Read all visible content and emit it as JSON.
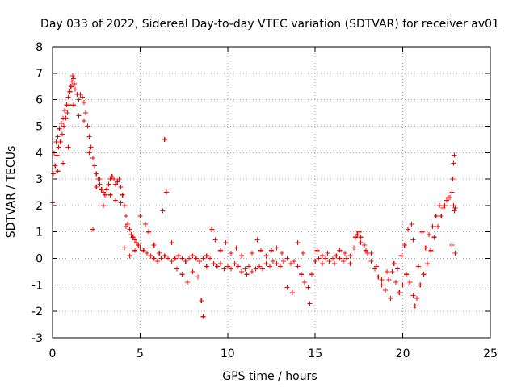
{
  "chart_data": {
    "type": "scatter",
    "title": "Day 033 of 2022, Sidereal Day-to-day VTEC variation (SDTVAR) for receiver av01",
    "xlabel": "GPS time / hours",
    "ylabel": "SDTVAR / TECUs",
    "xlim": [
      0,
      25
    ],
    "ylim": [
      -3,
      8
    ],
    "xticks": [
      0,
      5,
      10,
      15,
      20,
      25
    ],
    "yticks": [
      -3,
      -2,
      -1,
      0,
      1,
      2,
      3,
      4,
      5,
      6,
      7,
      8
    ],
    "grid": true,
    "legend": "none",
    "marker": "+",
    "color": "#ff0000",
    "series": [
      {
        "name": "SDTVAR",
        "points": [
          [
            0.0,
            2.1
          ],
          [
            0.05,
            3.2
          ],
          [
            0.1,
            4.0
          ],
          [
            0.15,
            3.5
          ],
          [
            0.2,
            4.4
          ],
          [
            0.25,
            3.9
          ],
          [
            0.3,
            4.6
          ],
          [
            0.35,
            4.2
          ],
          [
            0.4,
            4.9
          ],
          [
            0.45,
            4.4
          ],
          [
            0.5,
            5.1
          ],
          [
            0.55,
            4.7
          ],
          [
            0.6,
            5.3
          ],
          [
            0.65,
            5.0
          ],
          [
            0.7,
            5.6
          ],
          [
            0.75,
            5.3
          ],
          [
            0.8,
            5.8
          ],
          [
            0.85,
            5.5
          ],
          [
            0.9,
            6.1
          ],
          [
            0.95,
            5.8
          ],
          [
            1.0,
            6.3
          ],
          [
            1.05,
            6.5
          ],
          [
            1.1,
            6.7
          ],
          [
            1.15,
            6.9
          ],
          [
            1.2,
            6.8
          ],
          [
            1.25,
            6.6
          ],
          [
            1.3,
            6.4
          ],
          [
            1.4,
            6.2
          ],
          [
            1.5,
            6.0
          ],
          [
            1.6,
            6.2
          ],
          [
            1.7,
            6.1
          ],
          [
            1.8,
            5.9
          ],
          [
            1.9,
            5.5
          ],
          [
            2.0,
            5.0
          ],
          [
            2.1,
            4.6
          ],
          [
            2.2,
            4.2
          ],
          [
            2.3,
            3.8
          ],
          [
            2.4,
            3.5
          ],
          [
            2.5,
            3.2
          ],
          [
            2.6,
            3.0
          ],
          [
            2.7,
            2.8
          ],
          [
            2.8,
            2.6
          ],
          [
            2.9,
            2.5
          ],
          [
            3.0,
            2.4
          ],
          [
            3.1,
            2.6
          ],
          [
            3.2,
            2.8
          ],
          [
            3.3,
            3.0
          ],
          [
            3.4,
            3.1
          ],
          [
            3.5,
            3.0
          ],
          [
            3.6,
            2.8
          ],
          [
            3.7,
            2.9
          ],
          [
            3.8,
            3.0
          ],
          [
            3.9,
            2.7
          ],
          [
            4.0,
            2.4
          ],
          [
            4.1,
            2.0
          ],
          [
            4.2,
            1.6
          ],
          [
            4.3,
            1.3
          ],
          [
            4.4,
            1.1
          ],
          [
            4.5,
            0.9
          ],
          [
            4.6,
            0.8
          ],
          [
            4.7,
            0.7
          ],
          [
            4.8,
            0.6
          ],
          [
            4.9,
            0.5
          ],
          [
            5.0,
            0.4
          ],
          [
            5.2,
            0.3
          ],
          [
            5.4,
            0.2
          ],
          [
            5.6,
            0.1
          ],
          [
            5.8,
            0.0
          ],
          [
            6.0,
            -0.1
          ],
          [
            6.2,
            0.0
          ],
          [
            6.4,
            0.1
          ],
          [
            6.6,
            0.0
          ],
          [
            6.8,
            -0.1
          ],
          [
            7.0,
            0.0
          ],
          [
            7.2,
            0.1
          ],
          [
            7.4,
            0.0
          ],
          [
            7.6,
            -0.1
          ],
          [
            7.8,
            0.0
          ],
          [
            8.0,
            0.1
          ],
          [
            8.2,
            0.0
          ],
          [
            8.4,
            -0.1
          ],
          [
            8.6,
            0.0
          ],
          [
            8.8,
            0.1
          ],
          [
            9.0,
            0.0
          ],
          [
            9.2,
            -0.2
          ],
          [
            9.4,
            -0.3
          ],
          [
            9.6,
            -0.2
          ],
          [
            9.8,
            -0.4
          ],
          [
            10.0,
            -0.3
          ],
          [
            10.2,
            -0.4
          ],
          [
            10.4,
            -0.2
          ],
          [
            10.6,
            -0.3
          ],
          [
            10.8,
            -0.5
          ],
          [
            11.0,
            -0.4
          ],
          [
            11.2,
            -0.3
          ],
          [
            11.4,
            -0.5
          ],
          [
            11.6,
            -0.4
          ],
          [
            11.8,
            -0.3
          ],
          [
            12.0,
            -0.4
          ],
          [
            12.2,
            -0.2
          ],
          [
            12.4,
            -0.3
          ],
          [
            12.6,
            -0.1
          ],
          [
            12.8,
            -0.2
          ],
          [
            13.0,
            -0.3
          ],
          [
            13.2,
            -0.1
          ],
          [
            13.4,
            0.0
          ],
          [
            13.6,
            -0.2
          ],
          [
            13.8,
            -0.1
          ],
          [
            14.0,
            -0.3
          ],
          [
            14.2,
            -0.6
          ],
          [
            14.4,
            -0.9
          ],
          [
            14.6,
            -1.1
          ],
          [
            14.8,
            -0.6
          ],
          [
            15.0,
            -0.1
          ],
          [
            15.2,
            0.0
          ],
          [
            15.4,
            0.1
          ],
          [
            15.6,
            0.0
          ],
          [
            15.8,
            -0.1
          ],
          [
            16.0,
            0.0
          ],
          [
            16.2,
            0.1
          ],
          [
            16.4,
            0.0
          ],
          [
            16.6,
            -0.1
          ],
          [
            16.8,
            0.0
          ],
          [
            17.0,
            0.1
          ],
          [
            17.2,
            0.4
          ],
          [
            17.4,
            0.9
          ],
          [
            17.5,
            1.0
          ],
          [
            17.6,
            0.8
          ],
          [
            17.8,
            0.5
          ],
          [
            18.0,
            0.2
          ],
          [
            18.2,
            -0.1
          ],
          [
            18.4,
            -0.4
          ],
          [
            18.6,
            -0.7
          ],
          [
            18.8,
            -1.0
          ],
          [
            19.0,
            -1.2
          ],
          [
            19.2,
            -0.8
          ],
          [
            19.4,
            -0.5
          ],
          [
            19.6,
            -0.9
          ],
          [
            19.8,
            -1.3
          ],
          [
            20.0,
            -1.0
          ],
          [
            20.2,
            -0.6
          ],
          [
            20.4,
            -0.9
          ],
          [
            20.6,
            -1.4
          ],
          [
            20.7,
            -1.8
          ],
          [
            20.8,
            -1.5
          ],
          [
            21.0,
            -1.0
          ],
          [
            21.2,
            -0.6
          ],
          [
            21.4,
            -0.2
          ],
          [
            21.6,
            0.3
          ],
          [
            21.8,
            0.8
          ],
          [
            22.0,
            1.2
          ],
          [
            22.2,
            1.6
          ],
          [
            22.4,
            2.0
          ],
          [
            22.6,
            2.3
          ],
          [
            22.8,
            2.5
          ],
          [
            22.9,
            2.0
          ],
          [
            22.95,
            1.8
          ],
          [
            23.0,
            1.9
          ],
          [
            0.3,
            3.3
          ],
          [
            0.6,
            3.6
          ],
          [
            0.9,
            4.2
          ],
          [
            1.2,
            5.8
          ],
          [
            1.5,
            5.4
          ],
          [
            1.8,
            5.2
          ],
          [
            2.1,
            4.0
          ],
          [
            2.3,
            1.1
          ],
          [
            2.5,
            2.7
          ],
          [
            2.7,
            3.0
          ],
          [
            2.9,
            2.0
          ],
          [
            3.3,
            2.4
          ],
          [
            3.6,
            2.2
          ],
          [
            3.9,
            2.1
          ],
          [
            4.1,
            0.4
          ],
          [
            4.2,
            1.2
          ],
          [
            4.4,
            0.1
          ],
          [
            4.7,
            0.3
          ],
          [
            5.0,
            1.6
          ],
          [
            5.3,
            1.3
          ],
          [
            5.5,
            1.0
          ],
          [
            5.8,
            0.5
          ],
          [
            6.1,
            0.2
          ],
          [
            6.3,
            1.8
          ],
          [
            6.4,
            4.5
          ],
          [
            6.5,
            2.5
          ],
          [
            6.8,
            0.6
          ],
          [
            7.1,
            -0.4
          ],
          [
            7.4,
            -0.6
          ],
          [
            7.7,
            -0.9
          ],
          [
            8.0,
            -0.5
          ],
          [
            8.3,
            -0.7
          ],
          [
            8.5,
            -1.6
          ],
          [
            8.6,
            -2.2
          ],
          [
            8.8,
            -0.3
          ],
          [
            9.1,
            1.1
          ],
          [
            9.3,
            0.7
          ],
          [
            9.6,
            0.3
          ],
          [
            9.9,
            0.6
          ],
          [
            10.2,
            0.2
          ],
          [
            10.5,
            0.4
          ],
          [
            10.8,
            0.1
          ],
          [
            11.1,
            -0.6
          ],
          [
            11.4,
            0.2
          ],
          [
            11.7,
            0.7
          ],
          [
            11.9,
            0.3
          ],
          [
            12.2,
            0.1
          ],
          [
            12.5,
            0.3
          ],
          [
            12.8,
            0.4
          ],
          [
            13.1,
            0.2
          ],
          [
            13.4,
            -1.1
          ],
          [
            13.7,
            -1.3
          ],
          [
            14.0,
            0.6
          ],
          [
            14.3,
            0.2
          ],
          [
            14.7,
            -1.7
          ],
          [
            15.1,
            0.3
          ],
          [
            15.4,
            -0.2
          ],
          [
            15.7,
            0.2
          ],
          [
            16.1,
            -0.2
          ],
          [
            16.4,
            0.3
          ],
          [
            16.7,
            0.2
          ],
          [
            17.0,
            -0.2
          ],
          [
            17.3,
            0.8
          ],
          [
            17.6,
            0.6
          ],
          [
            17.9,
            0.3
          ],
          [
            18.2,
            0.2
          ],
          [
            18.5,
            -0.3
          ],
          [
            18.8,
            -0.8
          ],
          [
            19.1,
            -0.5
          ],
          [
            19.3,
            -1.5
          ],
          [
            19.5,
            -0.2
          ],
          [
            19.7,
            -0.4
          ],
          [
            19.9,
            0.1
          ],
          [
            20.1,
            0.5
          ],
          [
            20.3,
            1.1
          ],
          [
            20.5,
            1.3
          ],
          [
            20.6,
            0.7
          ],
          [
            20.9,
            -0.3
          ],
          [
            21.1,
            1.0
          ],
          [
            21.3,
            0.4
          ],
          [
            21.5,
            0.9
          ],
          [
            21.7,
            1.2
          ],
          [
            21.9,
            1.6
          ],
          [
            22.1,
            2.0
          ],
          [
            22.3,
            1.9
          ],
          [
            22.5,
            2.2
          ],
          [
            22.7,
            2.3
          ],
          [
            22.8,
            0.5
          ],
          [
            22.85,
            3.0
          ],
          [
            22.9,
            3.6
          ],
          [
            22.95,
            3.9
          ],
          [
            23.0,
            0.2
          ]
        ]
      }
    ]
  }
}
